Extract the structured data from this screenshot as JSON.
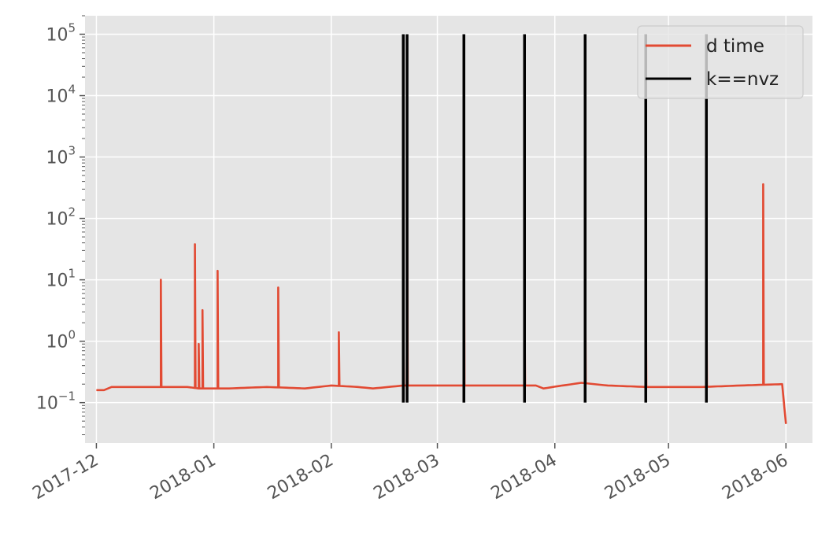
{
  "chart_data": {
    "type": "line",
    "title": "",
    "xlabel": "",
    "ylabel": "",
    "x_axis": {
      "type": "date",
      "range": [
        "2017-11-28",
        "2018-06-08"
      ],
      "ticks": [
        "2017-12-01",
        "2018-01-01",
        "2018-02-01",
        "2018-03-01",
        "2018-04-01",
        "2018-05-01",
        "2018-06-01"
      ],
      "tick_labels": [
        "2017-12",
        "2018-01",
        "2018-02",
        "2018-03",
        "2018-04",
        "2018-05",
        "2018-06"
      ],
      "tick_label_rotation": 30
    },
    "y_axis": {
      "scale": "log",
      "range": [
        0.022,
        200000
      ],
      "ticks": [
        0.1,
        1,
        10,
        100,
        1000,
        10000,
        100000
      ],
      "tick_labels": [
        {
          "base": "10",
          "exp": "−1"
        },
        {
          "base": "10",
          "exp": "0"
        },
        {
          "base": "10",
          "exp": "1"
        },
        {
          "base": "10",
          "exp": "2"
        },
        {
          "base": "10",
          "exp": "3"
        },
        {
          "base": "10",
          "exp": "4"
        },
        {
          "base": "10",
          "exp": "5"
        }
      ]
    },
    "grid": true,
    "legend": {
      "placement": "top-right",
      "entries": [
        {
          "label": "d time",
          "color": "#E24A33"
        },
        {
          "label": "k==nvz",
          "color": "#000000"
        }
      ]
    },
    "series": [
      {
        "name": "d time",
        "color": "#E24A33",
        "baseline": {
          "dates": [
            "2017-12-01",
            "2017-12-03",
            "2017-12-05",
            "2017-12-10",
            "2017-12-18",
            "2017-12-25",
            "2017-12-28",
            "2018-01-05",
            "2018-01-15",
            "2018-01-25",
            "2018-02-01",
            "2018-02-08",
            "2018-02-12",
            "2018-02-20",
            "2018-03-01",
            "2018-03-15",
            "2018-03-27",
            "2018-03-29",
            "2018-04-03",
            "2018-04-08",
            "2018-04-15",
            "2018-04-25",
            "2018-05-02",
            "2018-05-10",
            "2018-05-20",
            "2018-05-31"
          ],
          "values": [
            0.16,
            0.16,
            0.18,
            0.18,
            0.18,
            0.18,
            0.17,
            0.17,
            0.18,
            0.17,
            0.19,
            0.18,
            0.17,
            0.19,
            0.19,
            0.19,
            0.19,
            0.17,
            0.19,
            0.21,
            0.19,
            0.18,
            0.18,
            0.18,
            0.19,
            0.2
          ]
        },
        "spikes": [
          {
            "date": "2017-12-18",
            "value": 10
          },
          {
            "date": "2017-12-27",
            "value": 38
          },
          {
            "date": "2017-12-28",
            "value": 0.9
          },
          {
            "date": "2017-12-29",
            "value": 3.2
          },
          {
            "date": "2018-01-02",
            "value": 14
          },
          {
            "date": "2018-01-18",
            "value": 7.5
          },
          {
            "date": "2018-02-03",
            "value": 1.4
          },
          {
            "date": "2018-02-20",
            "value": 3.3
          },
          {
            "date": "2018-02-21",
            "value": 310
          },
          {
            "date": "2018-03-08",
            "value": 900
          },
          {
            "date": "2018-03-24",
            "value": 4
          },
          {
            "date": "2018-04-09",
            "value": 25
          },
          {
            "date": "2018-04-25",
            "value": 9.5
          },
          {
            "date": "2018-05-11",
            "value": 11
          },
          {
            "date": "2018-05-26",
            "value": 360
          }
        ],
        "end_drop": {
          "date": "2018-06-01",
          "value": 0.045
        }
      },
      {
        "name": "k==nvz",
        "color": "#000000",
        "type": "vlines",
        "ymin": 0.1,
        "ymax": 100000,
        "dates": [
          "2018-02-20",
          "2018-02-21",
          "2018-03-08",
          "2018-03-24",
          "2018-04-09",
          "2018-04-25",
          "2018-05-11"
        ]
      }
    ]
  }
}
